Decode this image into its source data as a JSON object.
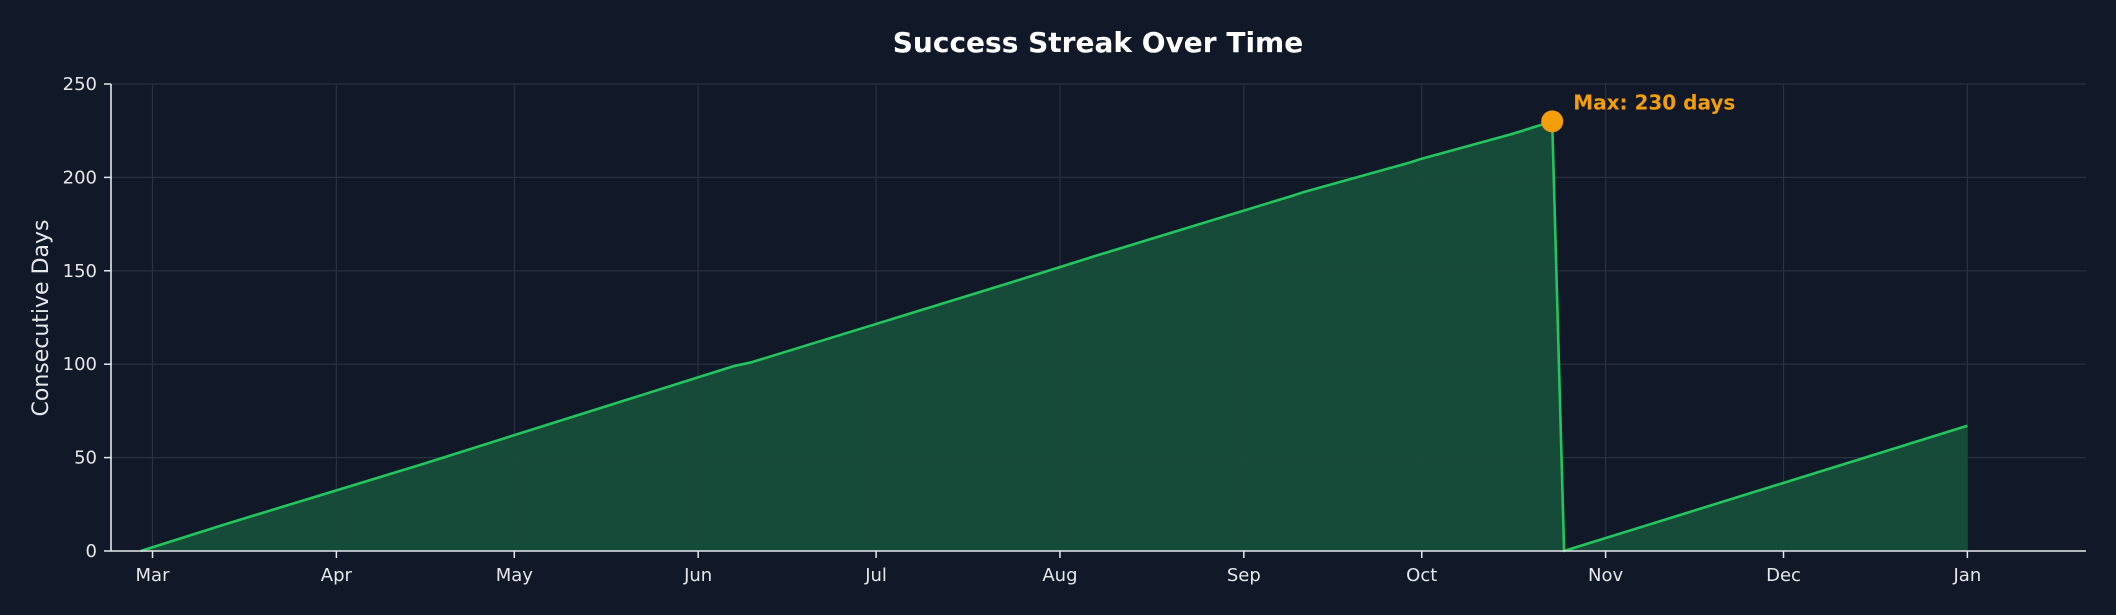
{
  "chart_data": {
    "type": "area",
    "title": "Success Streak Over Time",
    "xlabel": "",
    "ylabel": "Consecutive Days",
    "ylim": [
      0,
      250
    ],
    "yticks": [
      0,
      50,
      100,
      150,
      200,
      250
    ],
    "xlim": [
      "2024-02-23",
      "2025-01-21"
    ],
    "xticks": [
      {
        "date": "2024-03-01",
        "label": "Mar"
      },
      {
        "date": "2024-04-01",
        "label": "Apr"
      },
      {
        "date": "2024-05-01",
        "label": "May"
      },
      {
        "date": "2024-06-01",
        "label": "Jun"
      },
      {
        "date": "2024-07-01",
        "label": "Jul"
      },
      {
        "date": "2024-08-01",
        "label": "Aug"
      },
      {
        "date": "2024-09-01",
        "label": "Sep"
      },
      {
        "date": "2024-10-01",
        "label": "Oct"
      },
      {
        "date": "2024-11-01",
        "label": "Nov"
      },
      {
        "date": "2024-12-01",
        "label": "Dec"
      },
      {
        "date": "2025-01-01",
        "label": "Jan"
      }
    ],
    "grid": true,
    "series": [
      {
        "x": [
          "2024-02-28",
          "2024-03-13",
          "2024-03-15",
          "2024-04-14",
          "2024-04-16",
          "2024-06-07",
          "2024-06-10",
          "2024-07-24",
          "2024-07-26",
          "2024-08-05",
          "2024-08-07",
          "2024-09-09",
          "2024-09-11",
          "2024-09-29",
          "2024-10-01",
          "2024-10-16",
          "2024-10-18",
          "2024-10-23",
          "2024-10-25",
          "2024-10-27",
          "2025-01-01"
        ],
        "y": [
          0,
          14,
          16,
          45,
          47,
          99,
          101,
          144,
          146,
          156,
          158,
          190,
          192,
          208,
          210,
          223,
          225,
          230,
          0,
          2,
          67
        ]
      }
    ],
    "annotations": [
      {
        "type": "max-marker",
        "x": "2024-10-23",
        "y": 230,
        "text": "Max: 230 days"
      }
    ],
    "colors": {
      "background": "#111827",
      "line": "#22c55e",
      "fill": "#174d3a",
      "grid": "#2a3140",
      "axis": "#e5e7eb",
      "marker": "#f59e0b"
    }
  }
}
